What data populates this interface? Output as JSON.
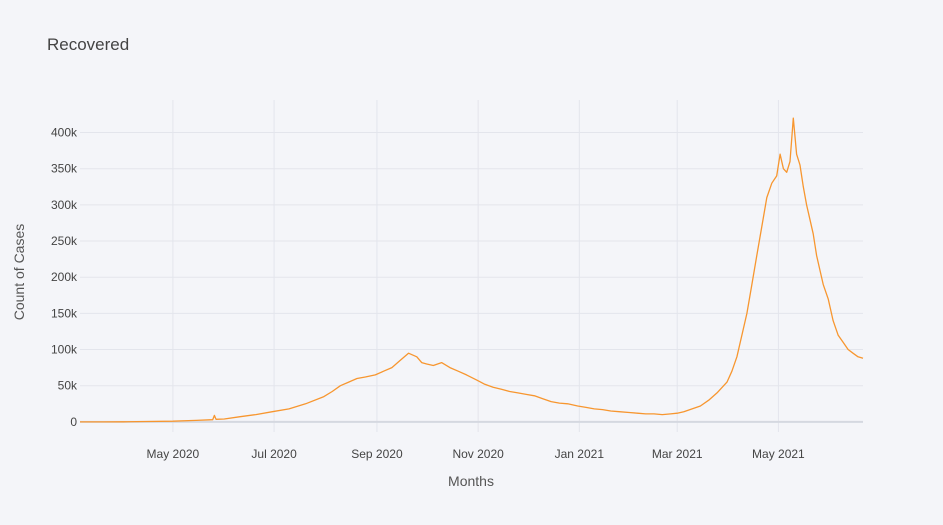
{
  "chart_data": {
    "type": "line",
    "title": "Recovered",
    "xlabel": "Months",
    "ylabel": "Count of Cases",
    "x_tick_labels": [
      "May 2020",
      "Jul 2020",
      "Sep 2020",
      "Nov 2020",
      "Jan 2021",
      "Mar 2021",
      "May 2021"
    ],
    "y_tick_labels": [
      "0",
      "50k",
      "100k",
      "150k",
      "200k",
      "250k",
      "300k",
      "350k",
      "400k"
    ],
    "y_ticks": [
      0,
      50000,
      100000,
      150000,
      200000,
      250000,
      300000,
      350000,
      400000
    ],
    "ylim": [
      -14000,
      445000
    ],
    "xlim": [
      "2020-03-06",
      "2021-06-21"
    ],
    "grid": true,
    "line_color": "#f7962f",
    "series": [
      {
        "x": [
          "2020-03-06",
          "2020-03-20",
          "2020-04-01",
          "2020-04-15",
          "2020-05-01",
          "2020-05-15",
          "2020-05-25",
          "2020-05-26",
          "2020-05-27",
          "2020-06-01",
          "2020-06-10",
          "2020-06-20",
          "2020-06-30",
          "2020-07-10",
          "2020-07-20",
          "2020-07-31",
          "2020-08-05",
          "2020-08-10",
          "2020-08-15",
          "2020-08-20",
          "2020-08-25",
          "2020-08-31",
          "2020-09-05",
          "2020-09-10",
          "2020-09-15",
          "2020-09-20",
          "2020-09-25",
          "2020-09-28",
          "2020-10-01",
          "2020-10-05",
          "2020-10-10",
          "2020-10-15",
          "2020-10-20",
          "2020-10-25",
          "2020-10-31",
          "2020-11-05",
          "2020-11-10",
          "2020-11-15",
          "2020-11-20",
          "2020-11-25",
          "2020-11-30",
          "2020-12-05",
          "2020-12-10",
          "2020-12-15",
          "2020-12-20",
          "2020-12-25",
          "2020-12-31",
          "2021-01-05",
          "2021-01-10",
          "2021-01-15",
          "2021-01-20",
          "2021-01-25",
          "2021-01-31",
          "2021-02-05",
          "2021-02-10",
          "2021-02-15",
          "2021-02-20",
          "2021-02-25",
          "2021-03-01",
          "2021-03-05",
          "2021-03-10",
          "2021-03-15",
          "2021-03-20",
          "2021-03-25",
          "2021-03-31",
          "2021-04-03",
          "2021-04-06",
          "2021-04-09",
          "2021-04-12",
          "2021-04-15",
          "2021-04-18",
          "2021-04-21",
          "2021-04-24",
          "2021-04-27",
          "2021-04-30",
          "2021-05-02",
          "2021-05-04",
          "2021-05-06",
          "2021-05-08",
          "2021-05-10",
          "2021-05-12",
          "2021-05-14",
          "2021-05-16",
          "2021-05-18",
          "2021-05-20",
          "2021-05-22",
          "2021-05-24",
          "2021-05-26",
          "2021-05-28",
          "2021-05-31",
          "2021-06-03",
          "2021-06-06",
          "2021-06-09",
          "2021-06-12",
          "2021-06-15",
          "2021-06-18",
          "2021-06-21"
        ],
        "y": [
          0,
          0,
          100,
          500,
          1000,
          2000,
          3000,
          9000,
          3500,
          4000,
          7000,
          10000,
          14000,
          18000,
          25000,
          35000,
          42000,
          50000,
          55000,
          60000,
          62000,
          65000,
          70000,
          75000,
          85000,
          95000,
          90000,
          82000,
          80000,
          78000,
          82000,
          75000,
          70000,
          65000,
          58000,
          52000,
          48000,
          45000,
          42000,
          40000,
          38000,
          36000,
          32000,
          28000,
          26000,
          25000,
          22000,
          20000,
          18000,
          17000,
          15000,
          14000,
          13000,
          12000,
          11000,
          11000,
          10000,
          11000,
          12000,
          14000,
          18000,
          22000,
          30000,
          40000,
          55000,
          70000,
          90000,
          120000,
          150000,
          190000,
          230000,
          270000,
          310000,
          330000,
          340000,
          370000,
          350000,
          345000,
          360000,
          420000,
          370000,
          355000,
          325000,
          300000,
          280000,
          260000,
          230000,
          210000,
          190000,
          170000,
          140000,
          120000,
          110000,
          100000,
          95000,
          90000,
          88000
        ]
      }
    ]
  }
}
